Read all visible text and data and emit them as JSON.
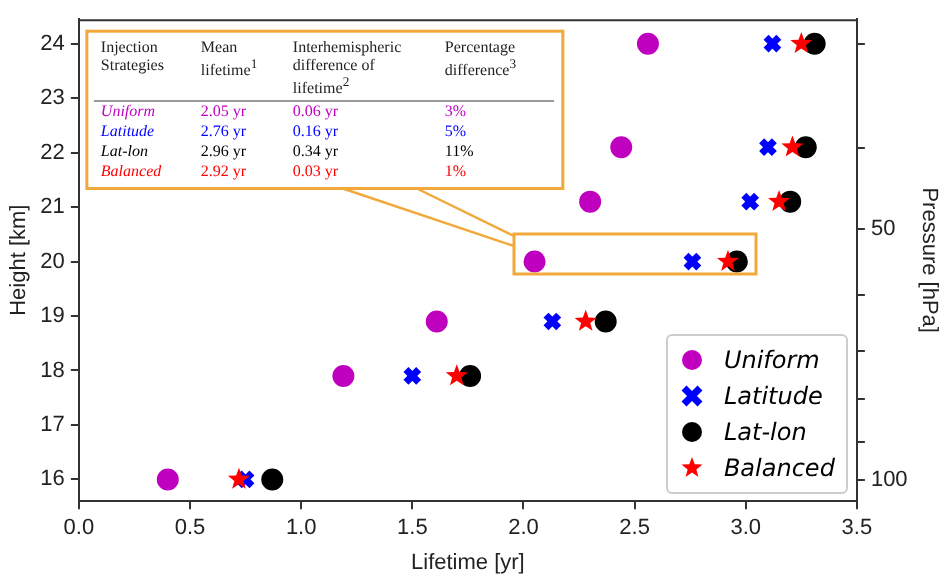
{
  "chart_data": {
    "type": "scatter",
    "xlabel": "Lifetime [yr]",
    "ylabel": "Height [km]",
    "y2label": "Pressure [hPa]",
    "xlim": [
      0,
      3.5
    ],
    "xticks": [
      {
        "value": 0,
        "label": "0.0"
      },
      {
        "value": 0.5,
        "label": "0.5"
      },
      {
        "value": 1,
        "label": "1.0"
      },
      {
        "value": 1.5,
        "label": "1.5"
      },
      {
        "value": 2,
        "label": "2.0"
      },
      {
        "value": 2.5,
        "label": "2.5"
      },
      {
        "value": 3,
        "label": "3.0"
      },
      {
        "value": 3.5,
        "label": "3.5"
      }
    ],
    "ylim": [
      15.6,
      24.45
    ],
    "yticks": [
      16,
      17,
      18,
      19,
      20,
      21,
      22,
      23,
      24
    ],
    "y2lim": [
      106,
      28
    ],
    "y2ticks": [
      {
        "value": 30,
        "label": null
      },
      {
        "value": 40,
        "label": null
      },
      50,
      {
        "value": 60,
        "label": null
      },
      {
        "value": 70,
        "label": null
      },
      {
        "value": 80,
        "label": null
      },
      {
        "value": 90,
        "label": null
      },
      100
    ],
    "log": "y2",
    "grid": false,
    "legend": "bottom right",
    "series": [
      {
        "name": "Uniform",
        "color": "#bf00bf",
        "marker": "circle",
        "x": [
          0.4,
          1.19,
          1.61,
          2.05,
          2.3,
          2.44,
          2.56
        ],
        "values": [
          16.0,
          17.9,
          18.9,
          20.0,
          21.1,
          22.1,
          24.0
        ]
      },
      {
        "name": "Latitude",
        "color": "#0000ff",
        "marker": "cross",
        "x": [
          0.75,
          1.5,
          2.13,
          2.76,
          3.02,
          3.1,
          3.12
        ],
        "values": [
          16.0,
          17.9,
          18.9,
          20.0,
          21.1,
          22.1,
          24.0
        ]
      },
      {
        "name": "Lat-lon",
        "color": "#000000",
        "marker": "circle",
        "x": [
          0.87,
          1.76,
          2.37,
          2.96,
          3.2,
          3.27,
          3.31
        ],
        "values": [
          16.0,
          17.9,
          18.9,
          20.0,
          21.1,
          22.1,
          24.0
        ]
      },
      {
        "name": "Balanced",
        "color": "#ff0000",
        "marker": "star",
        "x": [
          0.72,
          1.7,
          2.28,
          2.92,
          3.15,
          3.21,
          3.25
        ],
        "values": [
          16.0,
          17.9,
          18.9,
          20.0,
          21.1,
          22.1,
          24.0
        ]
      }
    ],
    "annotations": [
      "Injection Strategies",
      "Mean lifetime$^{1}$",
      "Interhemispheric difference of lifetime$^{2}$",
      "Percentage difference$^{3}$",
      "Uniform",
      "2.05 yr",
      "0.06 yr",
      "3%",
      "Latitude",
      "2.76 yr",
      "0.16 yr",
      "5%",
      "Lat-lon",
      "2.96 yr",
      "0.34 yr",
      "11%",
      "Balanced",
      "2.92 yr",
      "0.03 yr",
      "1%"
    ]
  }
}
